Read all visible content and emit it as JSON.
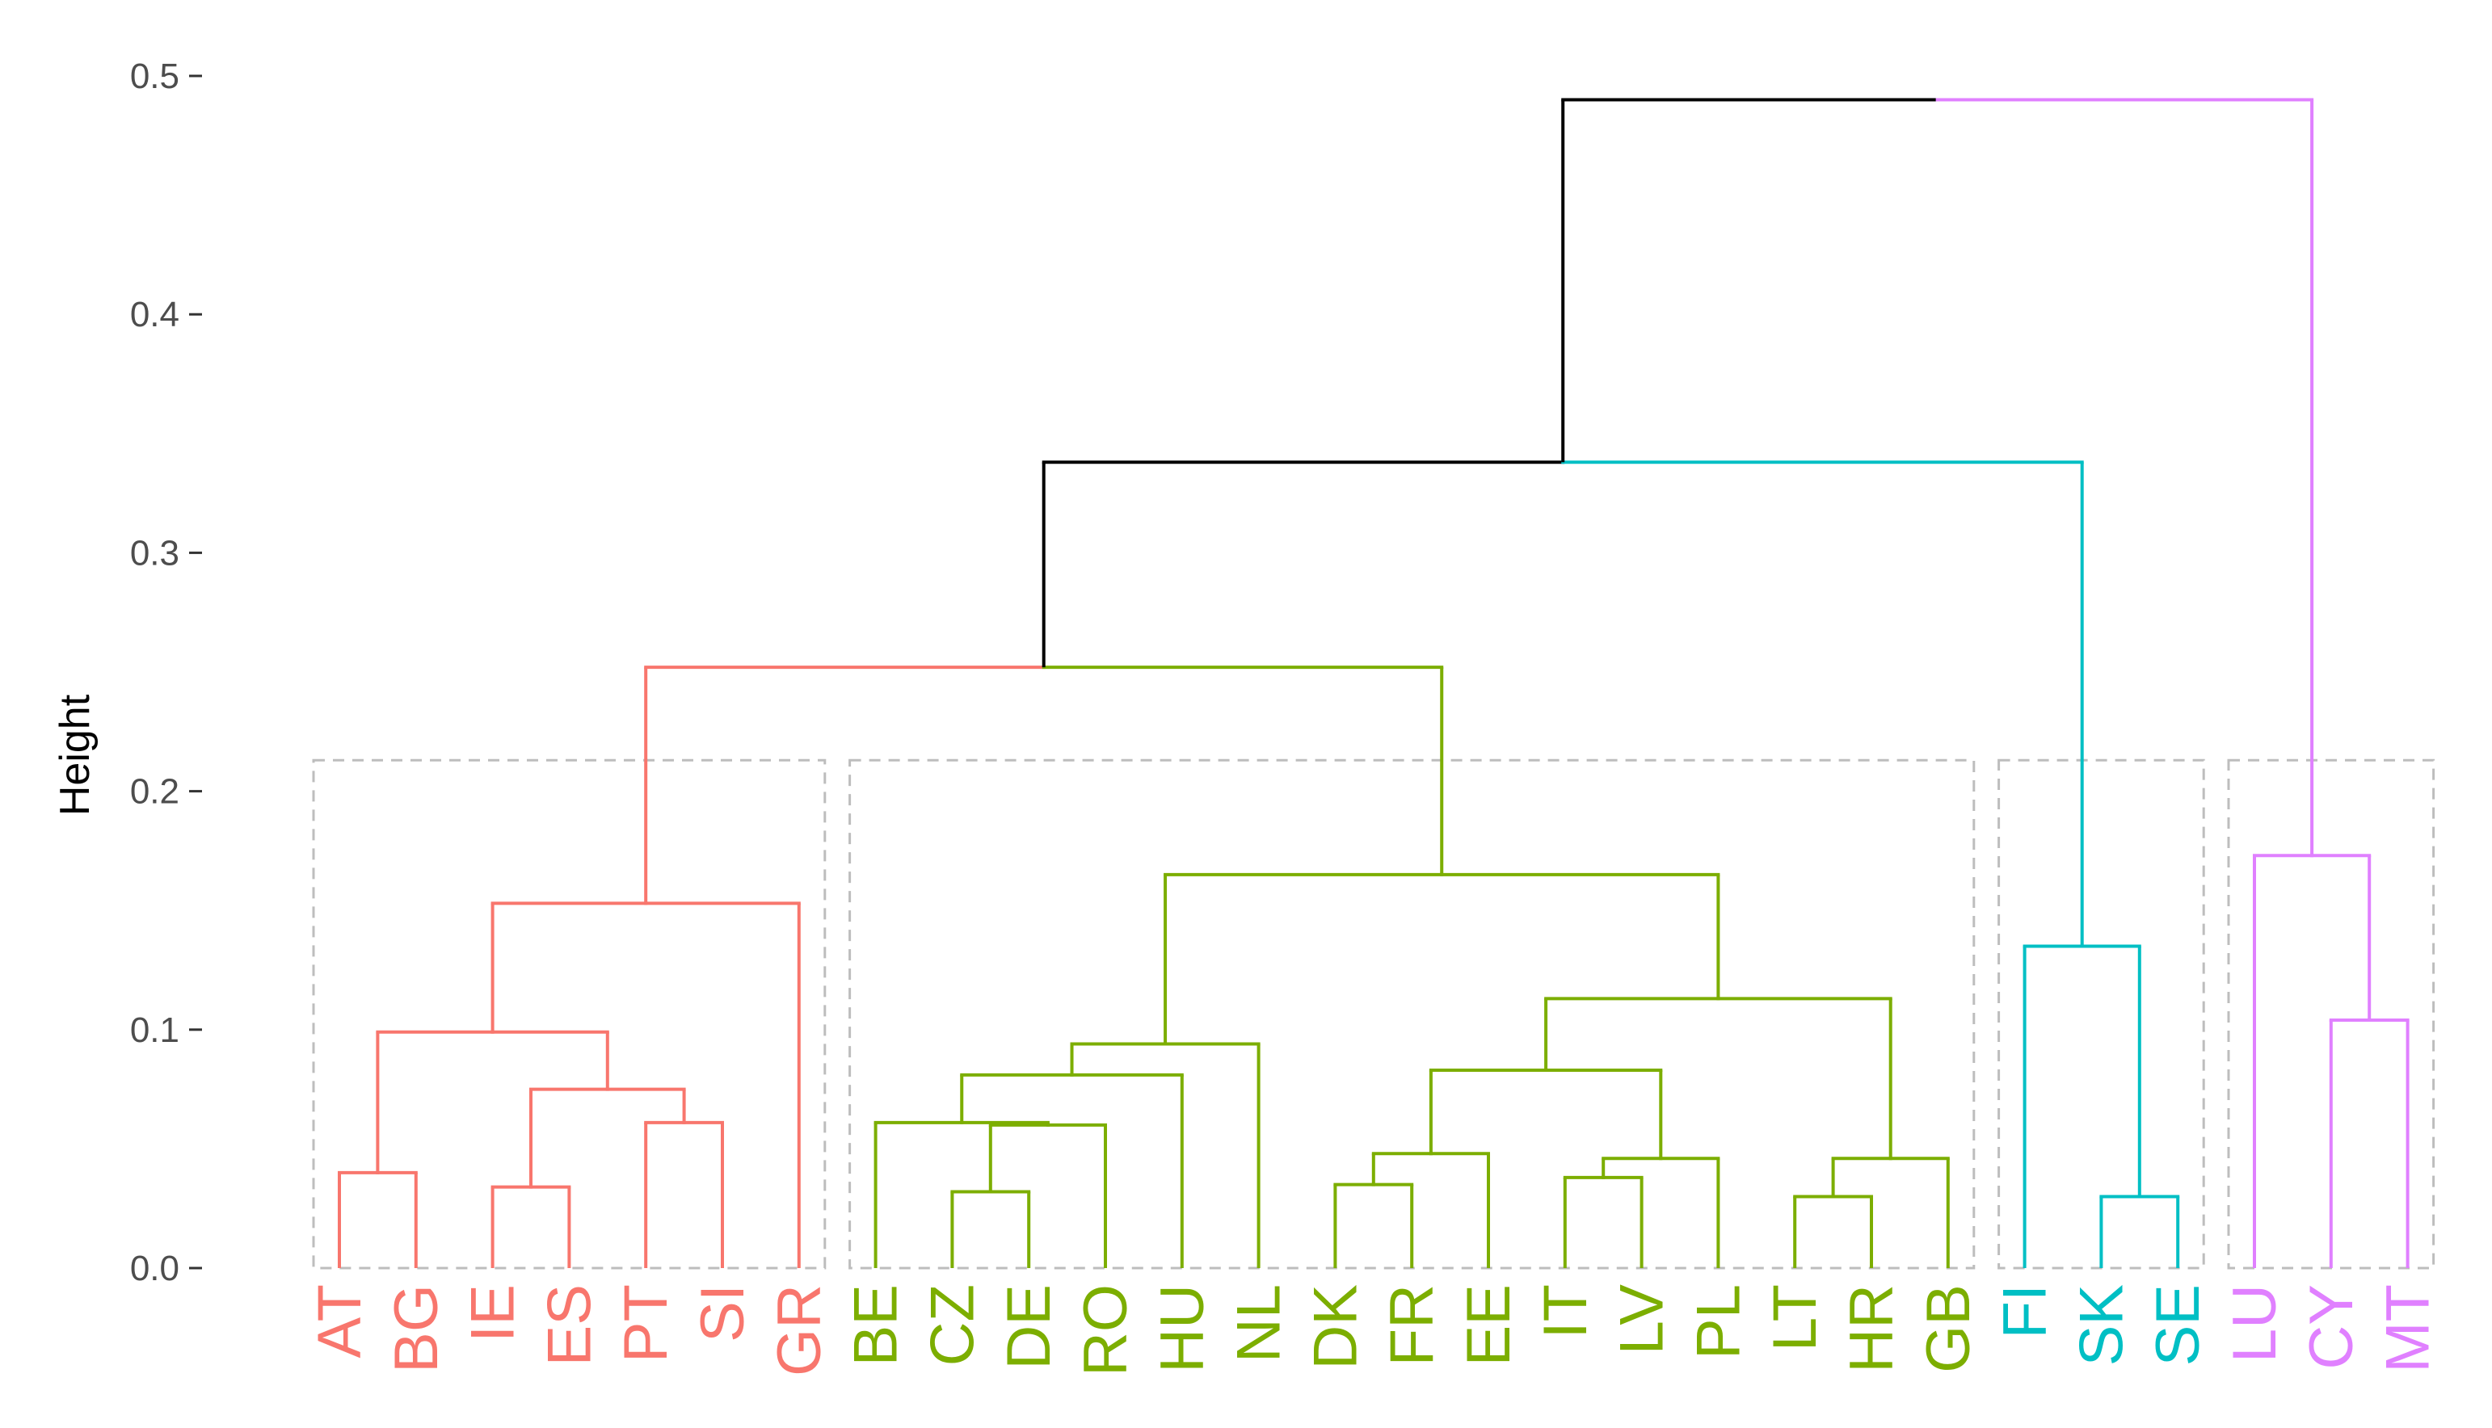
{
  "chart_data": {
    "type": "dendrogram",
    "ylabel": "Height",
    "ylim": [
      0,
      0.5
    ],
    "yticks": [
      "0.0",
      "0.1",
      "0.2",
      "0.3",
      "0.4",
      "0.5"
    ],
    "leaves": [
      "AT",
      "BG",
      "IE",
      "ES",
      "PT",
      "SI",
      "GR",
      "BE",
      "CZ",
      "DE",
      "RO",
      "HU",
      "NL",
      "DK",
      "FR",
      "EE",
      "IT",
      "LV",
      "PL",
      "LT",
      "HR",
      "GB",
      "FI",
      "SK",
      "SE",
      "LU",
      "CY",
      "MT"
    ],
    "clusters": [
      {
        "members": [
          "AT",
          "BG",
          "IE",
          "ES",
          "PT",
          "SI",
          "GR"
        ],
        "color": "#F8766D"
      },
      {
        "members": [
          "BE",
          "CZ",
          "DE",
          "RO",
          "HU",
          "NL",
          "DK",
          "FR",
          "EE",
          "IT",
          "LV",
          "PL",
          "LT",
          "HR",
          "GB"
        ],
        "color": "#7CAE00"
      },
      {
        "members": [
          "FI",
          "SK",
          "SE"
        ],
        "color": "#00BFC4"
      },
      {
        "members": [
          "LU",
          "CY",
          "MT"
        ],
        "color": "#E080FF"
      }
    ],
    "cut_height": 0.213,
    "link_color": "#000000",
    "merges": [
      {
        "id": "m1",
        "left": "AT",
        "right": "BG",
        "height": 0.04
      },
      {
        "id": "m2",
        "left": "IE",
        "right": "ES",
        "height": 0.034
      },
      {
        "id": "m3",
        "left": "PT",
        "right": "SI",
        "height": 0.061
      },
      {
        "id": "m4",
        "left": "m2",
        "right": "m3",
        "height": 0.075
      },
      {
        "id": "m5",
        "left": "m1",
        "right": "m4",
        "height": 0.099
      },
      {
        "id": "m6",
        "left": "m5",
        "right": "GR",
        "height": 0.153
      },
      {
        "id": "m7",
        "left": "CZ",
        "right": "DE",
        "height": 0.032
      },
      {
        "id": "m8",
        "left": "m7",
        "right": "RO",
        "height": 0.06
      },
      {
        "id": "m9",
        "left": "BE",
        "right": "m8",
        "height": 0.061
      },
      {
        "id": "m10",
        "left": "m9",
        "right": "HU",
        "height": 0.081
      },
      {
        "id": "m11",
        "left": "m10",
        "right": "NL",
        "height": 0.094
      },
      {
        "id": "m12",
        "left": "DK",
        "right": "FR",
        "height": 0.035
      },
      {
        "id": "m13",
        "left": "m12",
        "right": "EE",
        "height": 0.048
      },
      {
        "id": "m14",
        "left": "IT",
        "right": "LV",
        "height": 0.038
      },
      {
        "id": "m15",
        "left": "m14",
        "right": "PL",
        "height": 0.046
      },
      {
        "id": "m16",
        "left": "m13",
        "right": "m15",
        "height": 0.083
      },
      {
        "id": "m17",
        "left": "LT",
        "right": "HR",
        "height": 0.03
      },
      {
        "id": "m18",
        "left": "m17",
        "right": "GB",
        "height": 0.046
      },
      {
        "id": "m19",
        "left": "m16",
        "right": "m18",
        "height": 0.113
      },
      {
        "id": "m20",
        "left": "m11",
        "right": "m19",
        "height": 0.165
      },
      {
        "id": "m21",
        "left": "m6",
        "right": "m20",
        "height": 0.252
      },
      {
        "id": "m22",
        "left": "SK",
        "right": "SE",
        "height": 0.03
      },
      {
        "id": "m23",
        "left": "FI",
        "right": "m22",
        "height": 0.135
      },
      {
        "id": "m24",
        "left": "m21",
        "right": "m23",
        "height": 0.338
      },
      {
        "id": "m25",
        "left": "CY",
        "right": "MT",
        "height": 0.104
      },
      {
        "id": "m26",
        "left": "LU",
        "right": "m25",
        "height": 0.173
      },
      {
        "id": "m27",
        "left": "m24",
        "right": "m26",
        "height": 0.49
      }
    ]
  }
}
